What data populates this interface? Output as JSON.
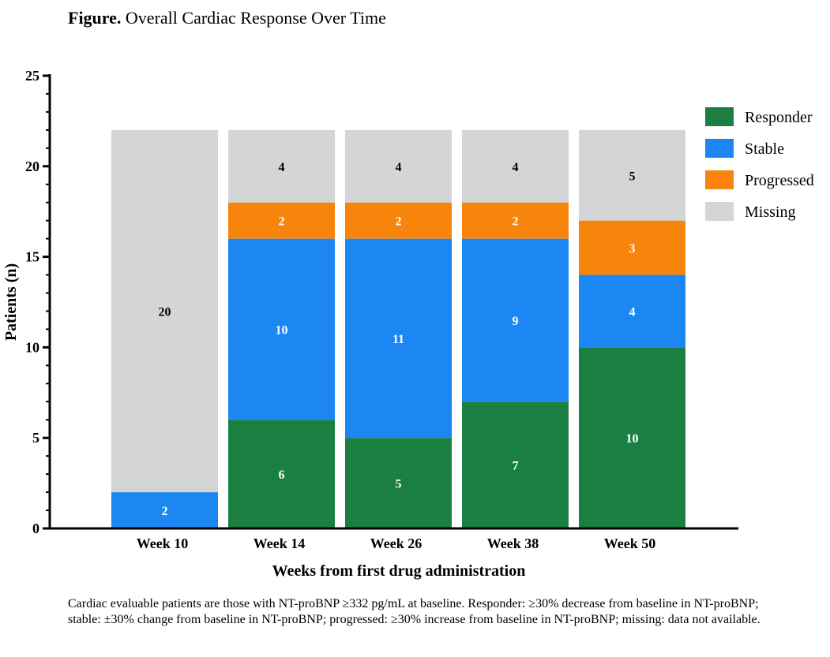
{
  "figure": {
    "title_prefix": "Figure.",
    "title": "Overall Cardiac Response Over Time",
    "caption": "Cardiac evaluable patients are those with NT-proBNP ≥332 pg/mL at baseline. Responder: ≥30% decrease from baseline in NT-proBNP; stable: ±30% change from baseline in NT-proBNP; progressed: ≥30% increase from baseline in NT-proBNP; missing: data not available."
  },
  "chart_data": {
    "type": "bar",
    "stacked": true,
    "categories": [
      "Week 10",
      "Week 14",
      "Week 26",
      "Week 38",
      "Week 50"
    ],
    "series": [
      {
        "name": "Responder",
        "color": "#1b7f42",
        "values": [
          0,
          6,
          5,
          7,
          10
        ]
      },
      {
        "name": "Stable",
        "color": "#1c86f2",
        "values": [
          2,
          10,
          11,
          9,
          4
        ]
      },
      {
        "name": "Progressed",
        "color": "#f8850b",
        "values": [
          0,
          2,
          2,
          2,
          3
        ]
      },
      {
        "name": "Missing",
        "color": "#d4d5d6",
        "values": [
          20,
          4,
          4,
          4,
          5
        ]
      }
    ],
    "xlabel": "Weeks from first drug administration",
    "ylabel": "Patients (n)",
    "ylim": [
      0,
      25
    ],
    "yticks": [
      0,
      5,
      10,
      15,
      20,
      25
    ],
    "legend_position": "right",
    "grid": false,
    "label_colors": {
      "dark_text": "#000000",
      "light_text": "#ffffff"
    }
  }
}
